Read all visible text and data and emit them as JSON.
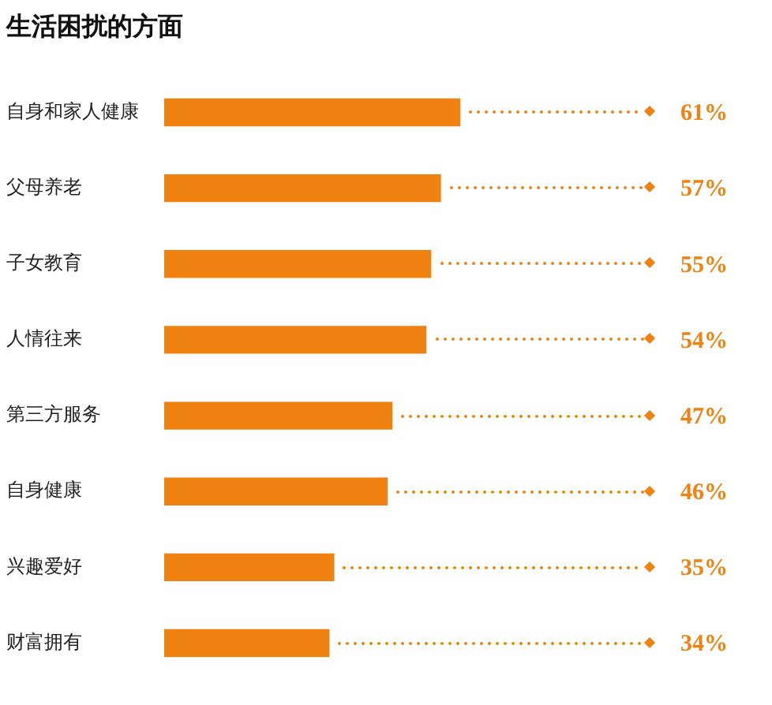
{
  "chart_data": {
    "type": "bar",
    "orientation": "horizontal",
    "title": "生活困扰的方面",
    "categories": [
      "自身和家人健康",
      "父母养老",
      "子女教育",
      "人情往来",
      "第三方服务",
      "自身健康",
      "兴趣爱好",
      "财富拥有"
    ],
    "values": [
      61,
      57,
      55,
      54,
      47,
      46,
      35,
      34
    ],
    "value_labels": [
      "61%",
      "57%",
      "55%",
      "54%",
      "47%",
      "46%",
      "35%",
      "34%"
    ],
    "color": "#f08211",
    "tick_labels": "y",
    "legend": false
  }
}
